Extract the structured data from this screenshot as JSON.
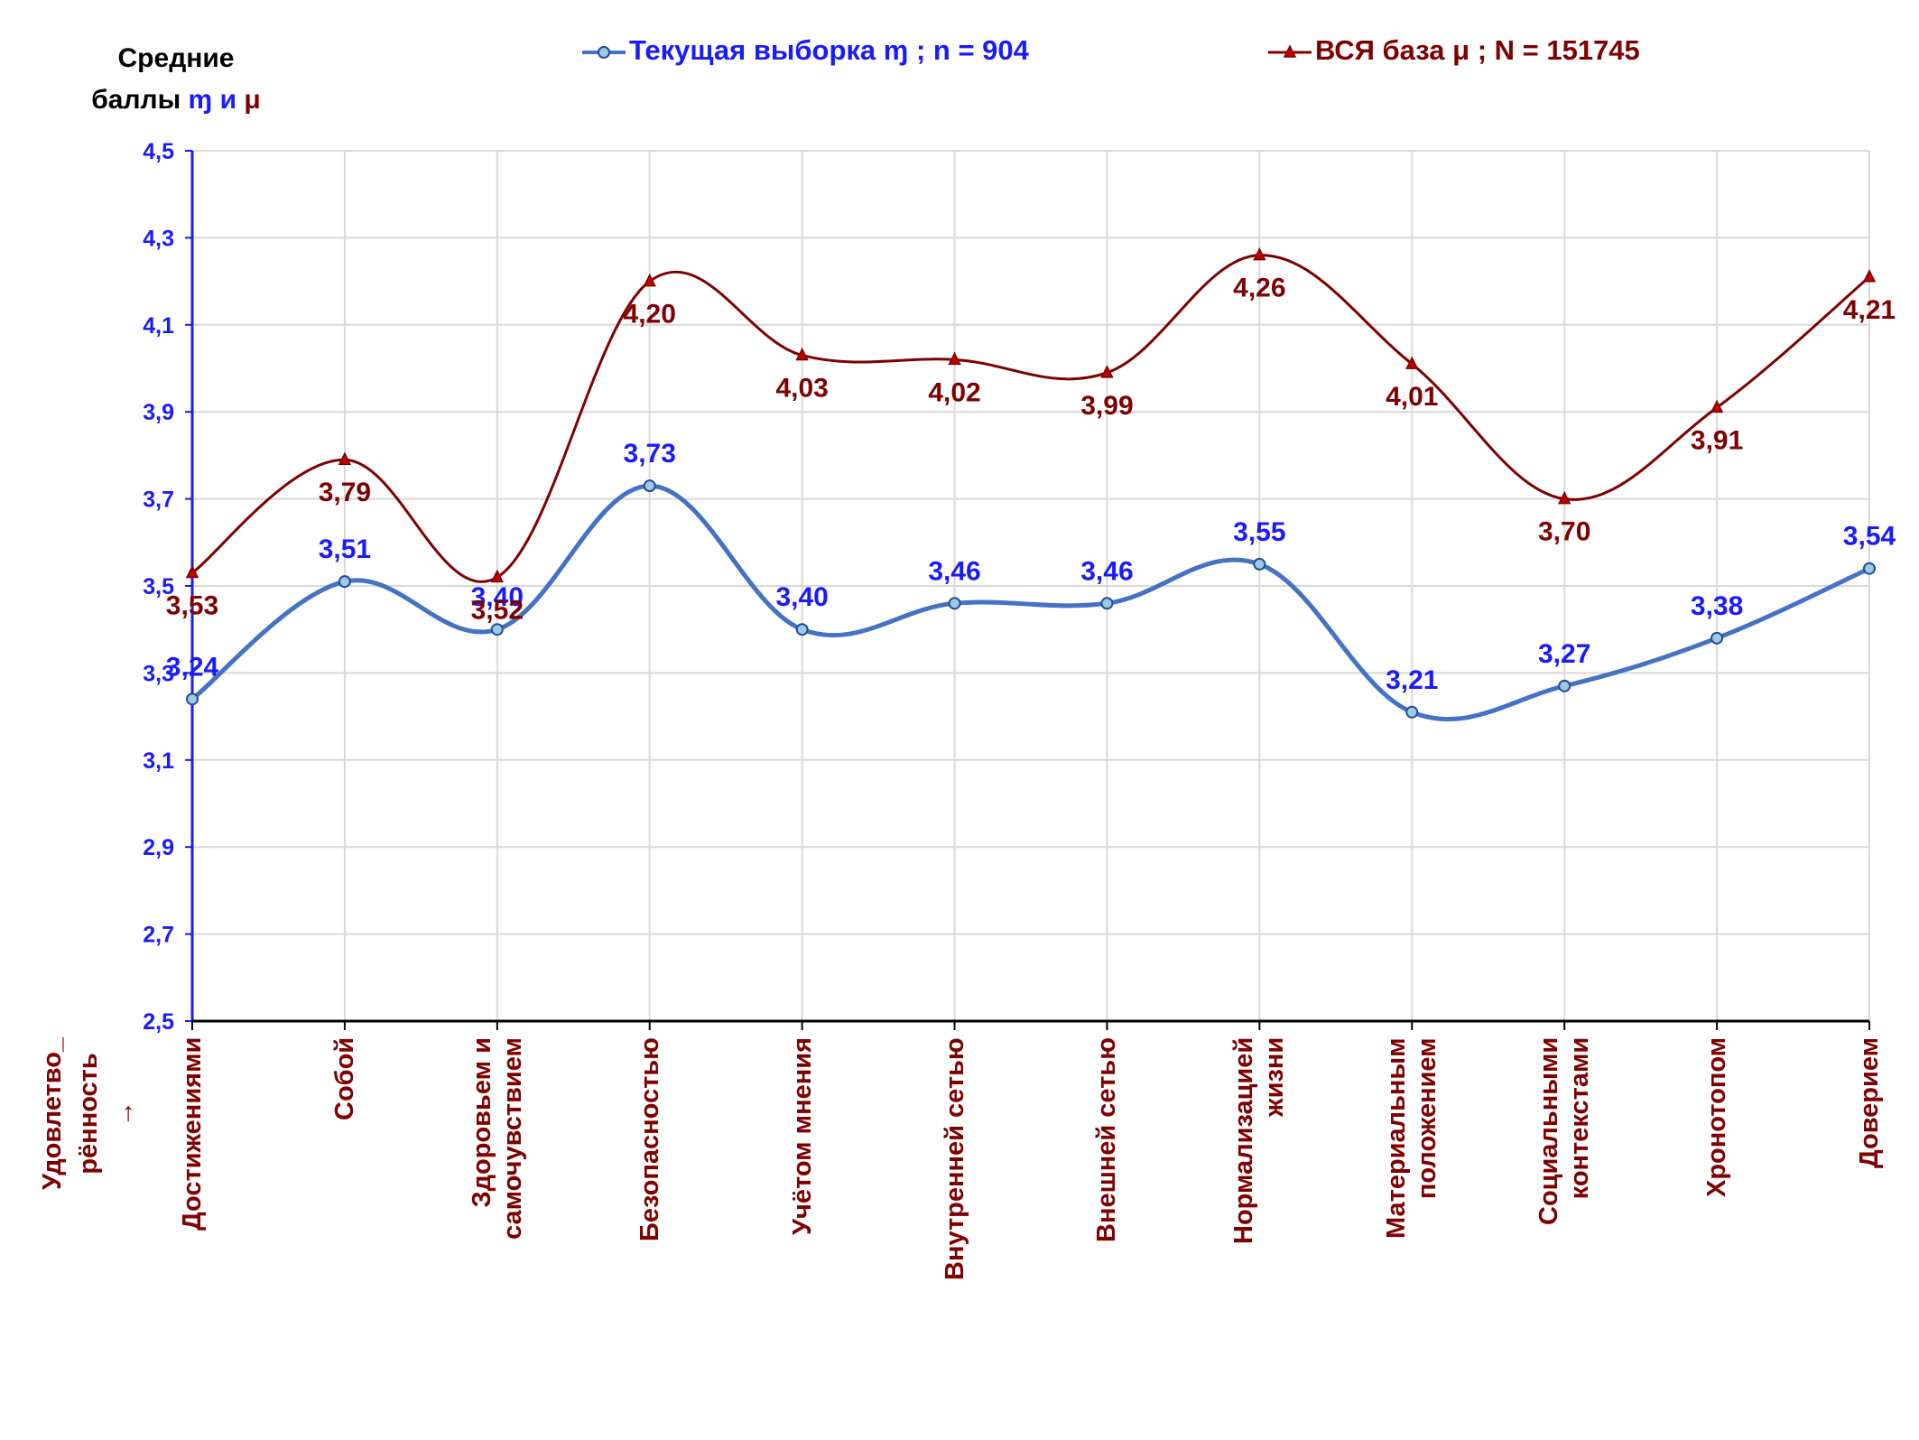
{
  "chart_data": {
    "type": "line",
    "ylabel": "Средние баллы",
    "ylabel_symbols": [
      "\u0001",
      "и",
      "μ"
    ],
    "ylim": [
      2.5,
      4.5
    ],
    "yticks": [
      "2,5",
      "2,7",
      "2,9",
      "3,1",
      "3,3",
      "3,5",
      "3,7",
      "3,9",
      "4,1",
      "4,3",
      "4,5"
    ],
    "ytick_values": [
      2.5,
      2.7,
      2.9,
      3.1,
      3.3,
      3.5,
      3.7,
      3.9,
      4.1,
      4.3,
      4.5
    ],
    "grid": true,
    "legend_position": "top",
    "x_corner_label": "Удовлетво_\nрённость\n→",
    "categories": [
      "Достижениями",
      "Собой",
      "Здоровьем и\nсамочувствием",
      "Безопасностью",
      "Учётом мнения",
      "Внутренней сетью",
      "Внешней сетью",
      "Нормализацией\nжизни",
      "Материальным\nположением",
      "Социальными\nконтекстами",
      "Хронотопом",
      "Доверием"
    ],
    "series": [
      {
        "name": "Текущая выборка",
        "legend_text": "Текущая выборка ɱ ; n = 904",
        "color": "#4472c4",
        "label_color": "#1a1aff",
        "marker": "circle",
        "values": [
          3.24,
          3.51,
          3.4,
          3.73,
          3.4,
          3.46,
          3.46,
          3.55,
          3.21,
          3.27,
          3.38,
          3.54
        ],
        "labels": [
          "3,24",
          "3,51",
          "3,40",
          "3,73",
          "3,40",
          "3,46",
          "3,46",
          "3,55",
          "3,21",
          "3,27",
          "3,38",
          "3,54"
        ]
      },
      {
        "name": "ВСЯ база",
        "legend_text": "ВСЯ база μ ; N = 151745",
        "color": "#7f0000",
        "label_color": "#7f0000",
        "marker": "triangle",
        "values": [
          3.53,
          3.79,
          3.52,
          4.2,
          4.03,
          4.02,
          3.99,
          4.26,
          4.01,
          3.7,
          3.91,
          4.21
        ],
        "labels": [
          "3,53",
          "3,79",
          "3,52",
          "4,20",
          "4,03",
          "4,02",
          "3,99",
          "4,26",
          "4,01",
          "3,70",
          "3,91",
          "4,21"
        ]
      }
    ]
  },
  "y_title_line1": "Средние",
  "y_title_word": "баллы",
  "y_title_sym_a": "ɱ",
  "y_title_and": "и",
  "y_title_sym_b": "μ"
}
